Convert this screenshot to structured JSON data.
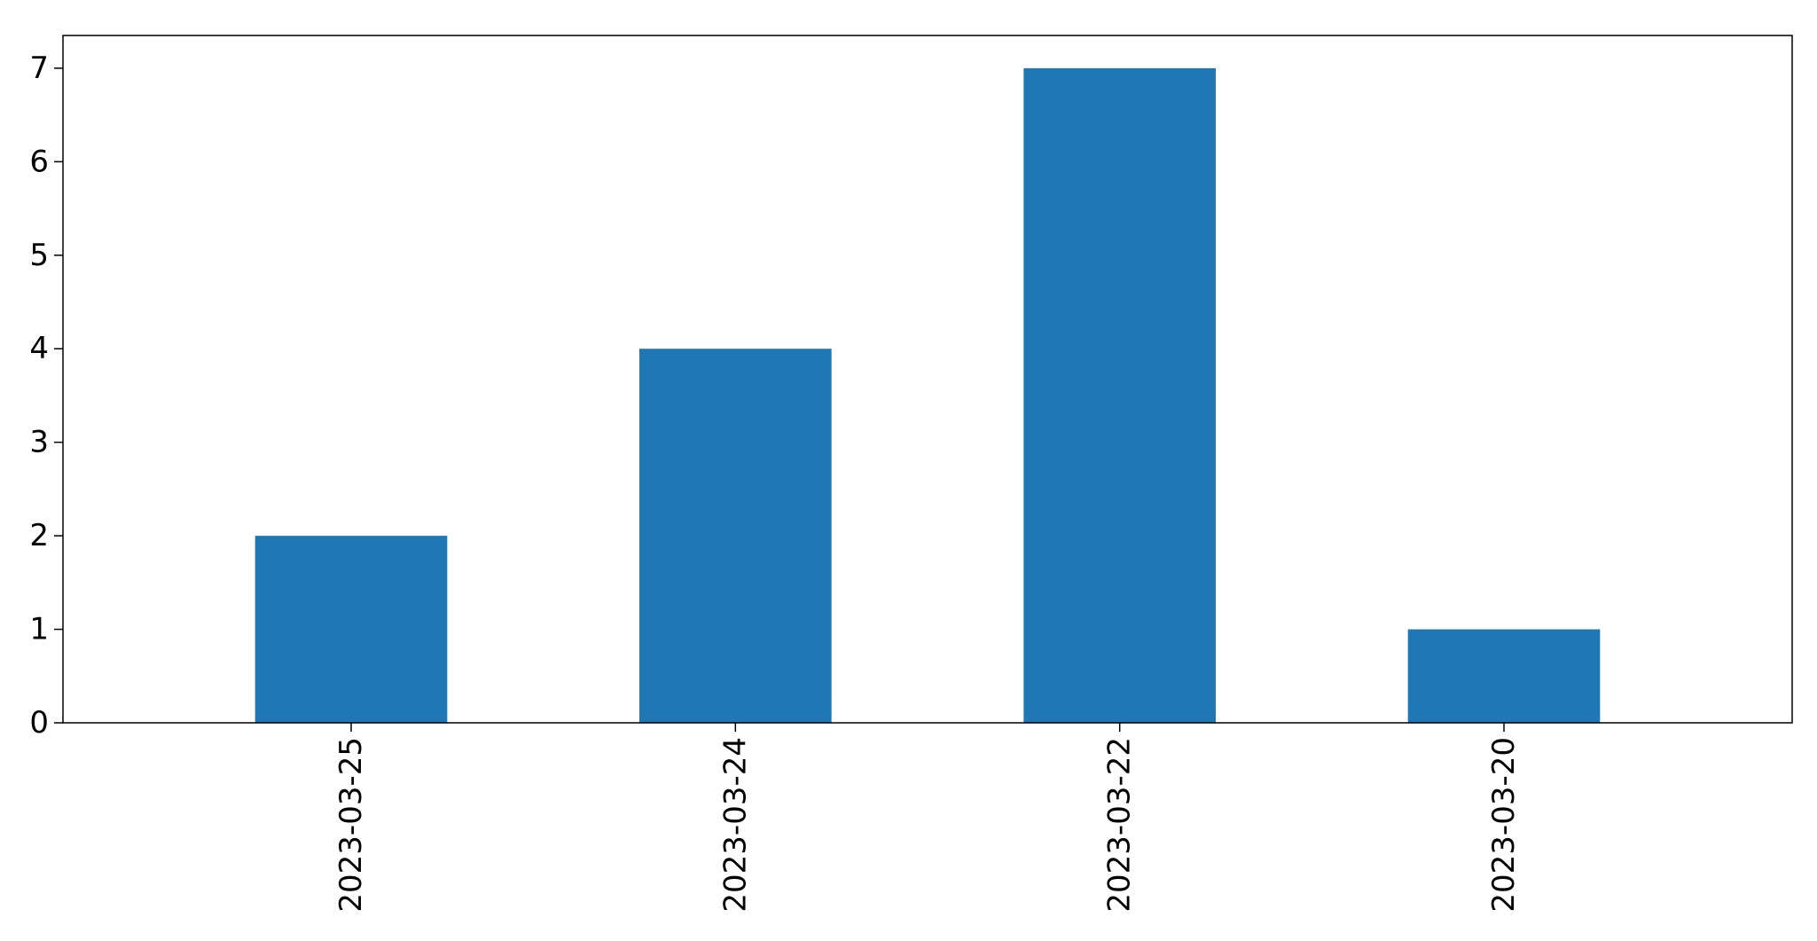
{
  "chart_data": {
    "type": "bar",
    "categories": [
      "2023-03-25",
      "2023-03-24",
      "2023-03-22",
      "2023-03-20"
    ],
    "values": [
      2,
      4,
      7,
      1
    ],
    "ylim": [
      0,
      7.35
    ],
    "yticks": [
      0,
      1,
      2,
      3,
      4,
      5,
      6,
      7
    ],
    "grid": false,
    "bar_color": "#1f77b4",
    "title": "",
    "xlabel": "",
    "ylabel": ""
  }
}
